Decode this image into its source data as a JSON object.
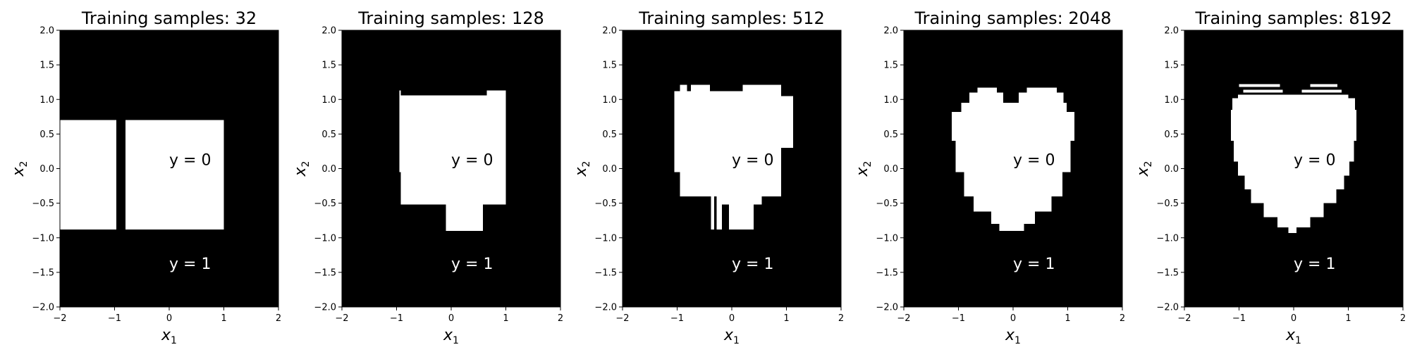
{
  "chart_data": [
    {
      "type": "heatmap",
      "title": "Training samples: 32",
      "xlabel": "x1",
      "ylabel": "x2",
      "xlim": [
        -2,
        2
      ],
      "ylim": [
        -2,
        2
      ],
      "xticks": [
        "−2",
        "−1",
        "0",
        "1",
        "2"
      ],
      "yticks": [
        "−2.0",
        "−1.5",
        "−1.0",
        "−0.5",
        "0.0",
        "0.5",
        "1.0",
        "1.5",
        "2.0"
      ],
      "background_class": "y = 1",
      "background_color": "#000000",
      "region_color": "#ffffff",
      "annotations": [
        {
          "text": "y = 0",
          "x": 0.0,
          "y": 0.05
        },
        {
          "text": "y = 1",
          "x": 0.0,
          "y": -1.45
        }
      ],
      "region_rects": [
        [
          -2.0,
          -0.88,
          -0.97,
          0.7
        ],
        [
          -0.8,
          -0.88,
          1.0,
          0.7
        ]
      ]
    },
    {
      "type": "heatmap",
      "title": "Training samples: 128",
      "xlabel": "x1",
      "ylabel": "x2",
      "xlim": [
        -2,
        2
      ],
      "ylim": [
        -2,
        2
      ],
      "xticks": [
        "−2",
        "−1",
        "0",
        "1",
        "2"
      ],
      "yticks": [
        "−2.0",
        "−1.5",
        "−1.0",
        "−0.5",
        "0.0",
        "0.5",
        "1.0",
        "1.5",
        "2.0"
      ],
      "background_class": "y = 1",
      "background_color": "#000000",
      "region_color": "#ffffff",
      "annotations": [
        {
          "text": "y = 0",
          "x": 0.0,
          "y": 0.05
        },
        {
          "text": "y = 1",
          "x": 0.0,
          "y": -1.45
        }
      ],
      "region_rects": [
        [
          -0.95,
          -0.05,
          -0.92,
          1.13
        ],
        [
          -0.92,
          -0.52,
          1.0,
          1.06
        ],
        [
          0.65,
          1.06,
          1.0,
          1.13
        ],
        [
          -0.1,
          -0.9,
          0.58,
          -0.52
        ]
      ]
    },
    {
      "type": "heatmap",
      "title": "Training samples: 512",
      "xlabel": "x1",
      "ylabel": "x2",
      "xlim": [
        -2,
        2
      ],
      "ylim": [
        -2,
        2
      ],
      "xticks": [
        "−2",
        "−1",
        "0",
        "1",
        "2"
      ],
      "yticks": [
        "−2.0",
        "−1.5",
        "−1.0",
        "−0.5",
        "0.0",
        "0.5",
        "1.0",
        "1.5",
        "2.0"
      ],
      "background_class": "y = 1",
      "background_color": "#000000",
      "region_color": "#ffffff",
      "annotations": [
        {
          "text": "y = 0",
          "x": 0.0,
          "y": 0.05
        },
        {
          "text": "y = 1",
          "x": 0.0,
          "y": -1.45
        }
      ],
      "region_rects": [
        [
          -1.05,
          -0.05,
          0.9,
          1.12
        ],
        [
          -0.75,
          1.12,
          -0.4,
          1.21
        ],
        [
          -0.95,
          1.12,
          -0.82,
          1.21
        ],
        [
          0.2,
          1.12,
          0.9,
          1.21
        ],
        [
          0.9,
          0.3,
          1.12,
          1.05
        ],
        [
          -0.95,
          -0.4,
          0.9,
          -0.05
        ],
        [
          -0.38,
          -0.88,
          -0.32,
          -0.4
        ],
        [
          -0.28,
          -0.52,
          0.55,
          -0.4
        ],
        [
          -0.28,
          -0.88,
          -0.18,
          -0.52
        ],
        [
          -0.05,
          -0.88,
          0.4,
          -0.52
        ]
      ]
    },
    {
      "type": "heatmap",
      "title": "Training samples: 2048",
      "xlabel": "x1",
      "ylabel": "x2",
      "xlim": [
        -2,
        2
      ],
      "ylim": [
        -2,
        2
      ],
      "xticks": [
        "−2",
        "−1",
        "0",
        "1",
        "2"
      ],
      "yticks": [
        "−2.0",
        "−1.5",
        "−1.0",
        "−0.5",
        "0.0",
        "0.5",
        "1.0",
        "1.5",
        "2.0"
      ],
      "background_class": "y = 1",
      "background_color": "#000000",
      "region_color": "#ffffff",
      "annotations": [
        {
          "text": "y = 0",
          "x": 0.0,
          "y": 0.05
        },
        {
          "text": "y = 1",
          "x": 0.0,
          "y": -1.45
        }
      ],
      "region_rects": [
        [
          -1.12,
          0.4,
          1.12,
          0.82
        ],
        [
          -0.95,
          0.82,
          0.98,
          0.95
        ],
        [
          -0.8,
          0.95,
          -0.18,
          1.1
        ],
        [
          -0.65,
          1.1,
          -0.3,
          1.17
        ],
        [
          0.1,
          0.95,
          0.92,
          1.1
        ],
        [
          0.25,
          1.1,
          0.8,
          1.17
        ],
        [
          -1.05,
          -0.05,
          1.05,
          0.4
        ],
        [
          -0.9,
          -0.4,
          0.9,
          -0.05
        ],
        [
          -0.72,
          -0.62,
          0.7,
          -0.4
        ],
        [
          -0.4,
          -0.8,
          0.4,
          -0.62
        ],
        [
          -0.25,
          -0.9,
          0.2,
          -0.8
        ]
      ]
    },
    {
      "type": "heatmap",
      "title": "Training samples: 8192",
      "xlabel": "x1",
      "ylabel": "x2",
      "xlim": [
        -2,
        2
      ],
      "ylim": [
        -2,
        2
      ],
      "xticks": [
        "−2",
        "−1",
        "0",
        "1",
        "2"
      ],
      "yticks": [
        "−2.0",
        "−1.5",
        "−1.0",
        "−0.5",
        "0.0",
        "0.5",
        "1.0",
        "1.5",
        "2.0"
      ],
      "background_class": "y = 1",
      "background_color": "#000000",
      "region_color": "#ffffff",
      "annotations": [
        {
          "text": "y = 0",
          "x": 0.0,
          "y": 0.05
        },
        {
          "text": "y = 1",
          "x": 0.0,
          "y": -1.45
        }
      ],
      "region_rects": [
        [
          -1.0,
          1.18,
          -0.25,
          1.22
        ],
        [
          0.3,
          1.18,
          0.8,
          1.22
        ],
        [
          -0.92,
          1.1,
          -0.2,
          1.14
        ],
        [
          0.15,
          1.1,
          0.88,
          1.14
        ],
        [
          -1.02,
          1.02,
          1.0,
          1.07
        ],
        [
          -1.12,
          0.85,
          1.12,
          1.02
        ],
        [
          -1.15,
          0.4,
          1.15,
          0.85
        ],
        [
          -1.1,
          0.1,
          1.1,
          0.4
        ],
        [
          -1.02,
          -0.1,
          1.02,
          0.1
        ],
        [
          -0.9,
          -0.3,
          0.92,
          -0.1
        ],
        [
          -0.78,
          -0.5,
          0.78,
          -0.3
        ],
        [
          -0.55,
          -0.7,
          0.55,
          -0.5
        ],
        [
          -0.3,
          -0.85,
          0.3,
          -0.7
        ],
        [
          -0.1,
          -0.93,
          0.05,
          -0.85
        ]
      ]
    }
  ]
}
